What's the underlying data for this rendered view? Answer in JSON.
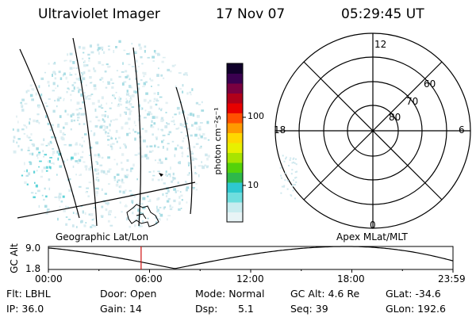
{
  "header": {
    "title": "Ultraviolet Imager",
    "date": "17 Nov 07",
    "time": "05:29:45 UT"
  },
  "colorbar": {
    "label": "photon cm⁻²s⁻¹",
    "ticks": [
      "100",
      "10"
    ],
    "colors": [
      "#e8f4f6",
      "#c8ecef",
      "#6fdede",
      "#2ec8d0",
      "#2eb84a",
      "#54d20a",
      "#a8e400",
      "#e8f000",
      "#ffd800",
      "#ff9a00",
      "#ff5000",
      "#e80000",
      "#b0001a",
      "#7a0040",
      "#3a0050",
      "#10002a"
    ]
  },
  "polar": {
    "mlt_labels": [
      "12",
      "18",
      "6",
      "0"
    ],
    "lat_labels": [
      "60",
      "70",
      "80"
    ]
  },
  "panel_labels": {
    "left": "Geographic Lat/Lon",
    "right": "Apex MLat/MLT"
  },
  "orbit": {
    "ylabel": "GC Alt",
    "yticks": [
      "9.0",
      "1.8"
    ],
    "xticks": [
      "00:00",
      "06:00",
      "12:00",
      "18:00",
      "23:59"
    ],
    "marker_time_hours": 5.5
  },
  "info": {
    "flt": "Flt: LBHL",
    "ip": "IP: 36.0",
    "door": "Door: Open",
    "gain": "Gain: 14",
    "mode": "Mode: Normal",
    "dsp_label": "Dsp:",
    "dsp_value": "5.1",
    "gcalt": "GC Alt: 4.6 Re",
    "seq": "Seq: 39",
    "glat": "GLat: -34.6",
    "glon": "GLon: 192.6"
  }
}
